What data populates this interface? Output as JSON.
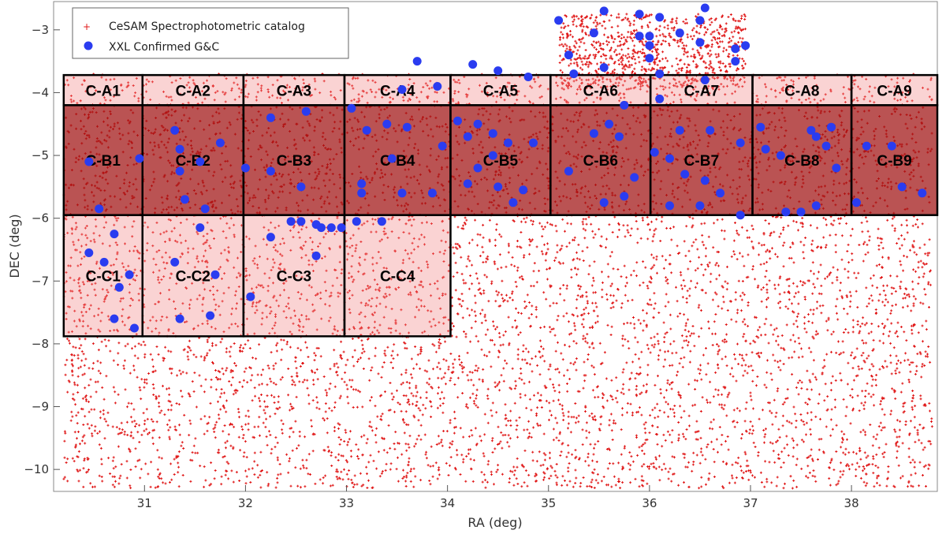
{
  "chart_data": {
    "type": "scatter",
    "xlabel": "RA",
    "xunit": "(deg)",
    "ylabel": "DEC",
    "yunit": "(deg)",
    "xlim": [
      30.1,
      38.85
    ],
    "ylim": [
      -10.35,
      -2.55
    ],
    "x_ticks": [
      31,
      32,
      33,
      34,
      35,
      36,
      37,
      38
    ],
    "y_ticks": [
      -3,
      -4,
      -5,
      -6,
      -7,
      -8,
      -9,
      -10
    ],
    "legend_position": "top-left",
    "colors": {
      "catalog": "#e01818",
      "confirmed": "#2a3cf0",
      "field_fill": "#a01010",
      "field_fill_light": "#f08080",
      "field_border": "#000000"
    },
    "series": [
      {
        "name": "CeSAM Spectrophotometric catalog",
        "marker": "small red cross",
        "description_regions": [
          {
            "ra": [
              30.2,
              38.8
            ],
            "dec": [
              -10.3,
              -3.7
            ]
          },
          {
            "ra": [
              35.1,
              36.95
            ],
            "dec": [
              -3.95,
              -2.75
            ]
          }
        ]
      },
      {
        "name": "XXL Confirmed G&C",
        "marker": "blue circle",
        "points": [
          [
            30.45,
            -6.55
          ],
          [
            30.7,
            -6.25
          ],
          [
            30.6,
            -6.7
          ],
          [
            30.85,
            -6.9
          ],
          [
            30.75,
            -7.1
          ],
          [
            30.7,
            -7.6
          ],
          [
            30.9,
            -7.75
          ],
          [
            30.55,
            -5.85
          ],
          [
            30.45,
            -5.1
          ],
          [
            30.95,
            -5.05
          ],
          [
            31.3,
            -4.6
          ],
          [
            31.35,
            -4.9
          ],
          [
            31.75,
            -4.8
          ],
          [
            31.55,
            -5.1
          ],
          [
            31.35,
            -5.25
          ],
          [
            31.4,
            -5.7
          ],
          [
            31.6,
            -5.85
          ],
          [
            31.55,
            -6.15
          ],
          [
            31.3,
            -6.7
          ],
          [
            31.7,
            -6.9
          ],
          [
            31.35,
            -7.6
          ],
          [
            31.65,
            -7.55
          ],
          [
            32.0,
            -5.2
          ],
          [
            32.25,
            -4.4
          ],
          [
            32.6,
            -4.3
          ],
          [
            32.25,
            -5.25
          ],
          [
            32.55,
            -5.5
          ],
          [
            32.45,
            -6.05
          ],
          [
            32.55,
            -6.05
          ],
          [
            32.7,
            -6.1
          ],
          [
            32.75,
            -6.15
          ],
          [
            32.85,
            -6.15
          ],
          [
            32.95,
            -6.15
          ],
          [
            32.25,
            -6.3
          ],
          [
            32.7,
            -6.6
          ],
          [
            32.05,
            -7.25
          ],
          [
            33.05,
            -4.25
          ],
          [
            33.2,
            -4.6
          ],
          [
            33.4,
            -4.5
          ],
          [
            33.6,
            -4.55
          ],
          [
            33.45,
            -5.05
          ],
          [
            33.15,
            -5.6
          ],
          [
            33.15,
            -5.45
          ],
          [
            33.55,
            -5.6
          ],
          [
            33.85,
            -5.6
          ],
          [
            33.95,
            -4.85
          ],
          [
            33.1,
            -6.05
          ],
          [
            33.35,
            -6.05
          ],
          [
            33.7,
            -3.5
          ],
          [
            33.9,
            -3.9
          ],
          [
            34.25,
            -3.55
          ],
          [
            34.5,
            -3.65
          ],
          [
            34.8,
            -3.75
          ],
          [
            33.55,
            -3.95
          ],
          [
            34.1,
            -4.45
          ],
          [
            34.3,
            -4.5
          ],
          [
            34.45,
            -4.65
          ],
          [
            34.6,
            -4.8
          ],
          [
            34.2,
            -4.7
          ],
          [
            34.45,
            -5.0
          ],
          [
            34.85,
            -4.8
          ],
          [
            34.3,
            -5.2
          ],
          [
            34.5,
            -5.5
          ],
          [
            34.75,
            -5.55
          ],
          [
            34.65,
            -5.75
          ],
          [
            34.2,
            -5.45
          ],
          [
            35.45,
            -4.65
          ],
          [
            35.6,
            -4.5
          ],
          [
            35.75,
            -4.2
          ],
          [
            35.7,
            -4.7
          ],
          [
            35.85,
            -5.35
          ],
          [
            35.55,
            -5.75
          ],
          [
            35.2,
            -5.25
          ],
          [
            35.75,
            -5.65
          ],
          [
            36.1,
            -4.1
          ],
          [
            36.05,
            -4.95
          ],
          [
            36.2,
            -5.05
          ],
          [
            36.3,
            -4.6
          ],
          [
            36.6,
            -4.6
          ],
          [
            36.9,
            -4.8
          ],
          [
            36.35,
            -5.3
          ],
          [
            36.55,
            -5.4
          ],
          [
            36.7,
            -5.6
          ],
          [
            36.5,
            -5.8
          ],
          [
            36.2,
            -5.8
          ],
          [
            36.9,
            -5.95
          ],
          [
            37.1,
            -4.55
          ],
          [
            37.15,
            -4.9
          ],
          [
            37.3,
            -5.0
          ],
          [
            37.35,
            -5.9
          ],
          [
            37.5,
            -5.9
          ],
          [
            37.6,
            -4.6
          ],
          [
            37.65,
            -4.7
          ],
          [
            37.8,
            -4.55
          ],
          [
            37.75,
            -4.85
          ],
          [
            37.85,
            -5.2
          ],
          [
            37.65,
            -5.8
          ],
          [
            38.15,
            -4.85
          ],
          [
            38.4,
            -4.85
          ],
          [
            38.5,
            -5.5
          ],
          [
            38.7,
            -5.6
          ],
          [
            38.05,
            -5.75
          ],
          [
            35.1,
            -2.85
          ],
          [
            35.55,
            -2.7
          ],
          [
            35.9,
            -2.75
          ],
          [
            36.1,
            -2.8
          ],
          [
            36.55,
            -2.65
          ],
          [
            36.5,
            -2.85
          ],
          [
            35.45,
            -3.05
          ],
          [
            35.9,
            -3.1
          ],
          [
            36.0,
            -3.1
          ],
          [
            36.3,
            -3.05
          ],
          [
            36.5,
            -3.2
          ],
          [
            36.0,
            -3.25
          ],
          [
            36.85,
            -3.3
          ],
          [
            36.85,
            -3.5
          ],
          [
            36.95,
            -3.25
          ],
          [
            35.2,
            -3.4
          ],
          [
            35.55,
            -3.6
          ],
          [
            36.0,
            -3.45
          ],
          [
            36.1,
            -3.7
          ],
          [
            36.55,
            -3.8
          ],
          [
            35.25,
            -3.7
          ]
        ]
      }
    ],
    "fields": [
      {
        "label": "C-A1",
        "ra": [
          30.2,
          30.98
        ],
        "dec": [
          -4.2,
          -3.72
        ],
        "shade": "light"
      },
      {
        "label": "C-A2",
        "ra": [
          30.98,
          31.98
        ],
        "dec": [
          -4.2,
          -3.72
        ],
        "shade": "light"
      },
      {
        "label": "C-A3",
        "ra": [
          31.98,
          32.98
        ],
        "dec": [
          -4.2,
          -3.72
        ],
        "shade": "light"
      },
      {
        "label": "C-A4",
        "ra": [
          32.98,
          34.03
        ],
        "dec": [
          -4.2,
          -3.72
        ],
        "shade": "light"
      },
      {
        "label": "C-A5",
        "ra": [
          34.03,
          35.02
        ],
        "dec": [
          -4.2,
          -3.72
        ],
        "shade": "light"
      },
      {
        "label": "C-A6",
        "ra": [
          35.02,
          36.01
        ],
        "dec": [
          -4.2,
          -3.72
        ],
        "shade": "light"
      },
      {
        "label": "C-A7",
        "ra": [
          36.01,
          37.02
        ],
        "dec": [
          -4.2,
          -3.72
        ],
        "shade": "light"
      },
      {
        "label": "C-A8",
        "ra": [
          37.02,
          38.0
        ],
        "dec": [
          -4.2,
          -3.72
        ],
        "shade": "light"
      },
      {
        "label": "C-A9",
        "ra": [
          38.0,
          38.85
        ],
        "dec": [
          -4.2,
          -3.72
        ],
        "shade": "light"
      },
      {
        "label": "C-B1",
        "ra": [
          30.2,
          30.98
        ],
        "dec": [
          -5.95,
          -4.2
        ],
        "shade": "dark"
      },
      {
        "label": "C-B2",
        "ra": [
          30.98,
          31.98
        ],
        "dec": [
          -5.95,
          -4.2
        ],
        "shade": "dark"
      },
      {
        "label": "C-B3",
        "ra": [
          31.98,
          32.98
        ],
        "dec": [
          -5.95,
          -4.2
        ],
        "shade": "dark"
      },
      {
        "label": "C-B4",
        "ra": [
          32.98,
          34.03
        ],
        "dec": [
          -5.95,
          -4.2
        ],
        "shade": "dark"
      },
      {
        "label": "C-B5",
        "ra": [
          34.03,
          35.02
        ],
        "dec": [
          -5.95,
          -4.2
        ],
        "shade": "dark"
      },
      {
        "label": "C-B6",
        "ra": [
          35.02,
          36.01
        ],
        "dec": [
          -5.95,
          -4.2
        ],
        "shade": "dark"
      },
      {
        "label": "C-B7",
        "ra": [
          36.01,
          37.02
        ],
        "dec": [
          -5.95,
          -4.2
        ],
        "shade": "dark"
      },
      {
        "label": "C-B8",
        "ra": [
          37.02,
          38.0
        ],
        "dec": [
          -5.95,
          -4.2
        ],
        "shade": "dark"
      },
      {
        "label": "C-B9",
        "ra": [
          38.0,
          38.85
        ],
        "dec": [
          -5.95,
          -4.2
        ],
        "shade": "dark"
      },
      {
        "label": "C-C1",
        "ra": [
          30.2,
          30.98
        ],
        "dec": [
          -7.88,
          -5.95
        ],
        "shade": "light"
      },
      {
        "label": "C-C2",
        "ra": [
          30.98,
          31.98
        ],
        "dec": [
          -7.88,
          -5.95
        ],
        "shade": "light"
      },
      {
        "label": "C-C3",
        "ra": [
          31.98,
          32.98
        ],
        "dec": [
          -7.88,
          -5.95
        ],
        "shade": "light"
      },
      {
        "label": "C-C4",
        "ra": [
          32.98,
          34.03
        ],
        "dec": [
          -7.88,
          -5.95
        ],
        "shade": "light"
      }
    ]
  }
}
